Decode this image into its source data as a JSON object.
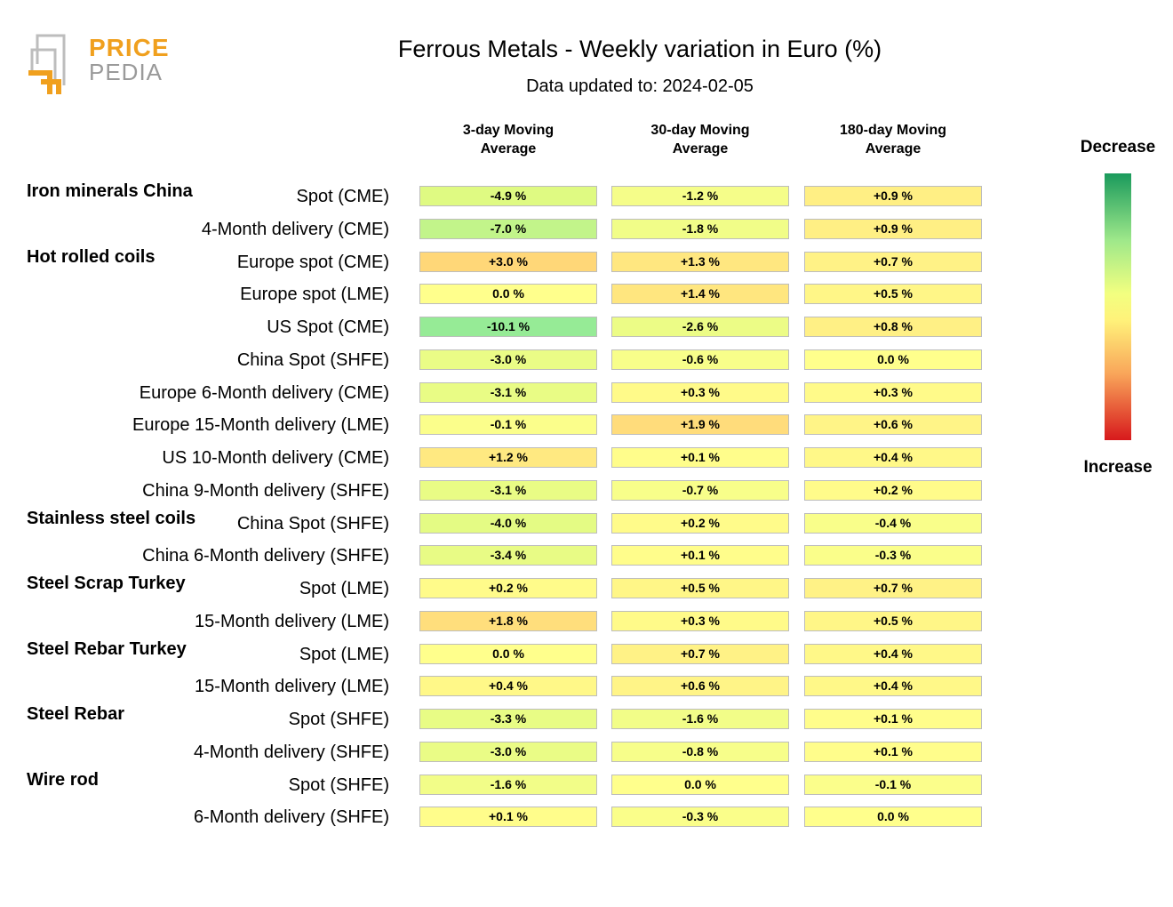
{
  "logo": {
    "line1": "PRICE",
    "line2": "PEDIA"
  },
  "chart_data": {
    "type": "heatmap",
    "title": "Ferrous Metals - Weekly variation in Euro (%)",
    "subtitle": "Data updated to: 2024-02-05",
    "columns": [
      "3-day Moving Average",
      "30-day Moving Average",
      "180-day Moving Average"
    ],
    "column_lines": [
      [
        "3-day Moving",
        "Average"
      ],
      [
        "30-day Moving",
        "Average"
      ],
      [
        "180-day Moving",
        "Average"
      ]
    ],
    "unit": "%",
    "legend": {
      "top": "Decrease",
      "bottom": "Increase"
    },
    "groups": [
      {
        "name": "Iron minerals China",
        "rows": [
          {
            "label": "Spot (CME)",
            "values": [
              -4.9,
              -1.2,
              0.9
            ],
            "display": [
              "-4.9 %",
              "-1.2 %",
              "+0.9 %"
            ]
          },
          {
            "label": "4-Month delivery (CME)",
            "values": [
              -7.0,
              -1.8,
              0.9
            ],
            "display": [
              "-7.0 %",
              "-1.8 %",
              "+0.9 %"
            ]
          }
        ]
      },
      {
        "name": "Hot rolled coils",
        "rows": [
          {
            "label": "Europe spot (CME)",
            "values": [
              3.0,
              1.3,
              0.7
            ],
            "display": [
              "+3.0 %",
              "+1.3 %",
              "+0.7 %"
            ]
          },
          {
            "label": "Europe spot (LME)",
            "values": [
              0.0,
              1.4,
              0.5
            ],
            "display": [
              "0.0 %",
              "+1.4 %",
              "+0.5 %"
            ]
          },
          {
            "label": "US Spot (CME)",
            "values": [
              -10.1,
              -2.6,
              0.8
            ],
            "display": [
              "-10.1 %",
              "-2.6 %",
              "+0.8 %"
            ]
          },
          {
            "label": "China Spot (SHFE)",
            "values": [
              -3.0,
              -0.6,
              0.0
            ],
            "display": [
              "-3.0 %",
              "-0.6 %",
              "0.0 %"
            ]
          },
          {
            "label": "Europe 6-Month delivery (CME)",
            "values": [
              -3.1,
              0.3,
              0.3
            ],
            "display": [
              "-3.1 %",
              "+0.3 %",
              "+0.3 %"
            ]
          },
          {
            "label": "Europe 15-Month delivery (LME)",
            "values": [
              -0.1,
              1.9,
              0.6
            ],
            "display": [
              "-0.1 %",
              "+1.9 %",
              "+0.6 %"
            ]
          },
          {
            "label": "US 10-Month delivery (CME)",
            "values": [
              1.2,
              0.1,
              0.4
            ],
            "display": [
              "+1.2 %",
              "+0.1 %",
              "+0.4 %"
            ]
          },
          {
            "label": "China 9-Month delivery (SHFE)",
            "values": [
              -3.1,
              -0.7,
              0.2
            ],
            "display": [
              "-3.1 %",
              "-0.7 %",
              "+0.2 %"
            ]
          }
        ]
      },
      {
        "name": "Stainless steel coils",
        "rows": [
          {
            "label": "China Spot (SHFE)",
            "values": [
              -4.0,
              0.2,
              -0.4
            ],
            "display": [
              "-4.0 %",
              "+0.2 %",
              "-0.4 %"
            ]
          },
          {
            "label": "China 6-Month delivery (SHFE)",
            "values": [
              -3.4,
              0.1,
              -0.3
            ],
            "display": [
              "-3.4 %",
              "+0.1 %",
              "-0.3 %"
            ]
          }
        ]
      },
      {
        "name": "Steel Scrap Turkey",
        "rows": [
          {
            "label": "Spot (LME)",
            "values": [
              0.2,
              0.5,
              0.7
            ],
            "display": [
              "+0.2 %",
              "+0.5 %",
              "+0.7 %"
            ]
          },
          {
            "label": "15-Month delivery (LME)",
            "values": [
              1.8,
              0.3,
              0.5
            ],
            "display": [
              "+1.8 %",
              "+0.3 %",
              "+0.5 %"
            ]
          }
        ]
      },
      {
        "name": "Steel Rebar Turkey",
        "rows": [
          {
            "label": "Spot (LME)",
            "values": [
              0.0,
              0.7,
              0.4
            ],
            "display": [
              "0.0 %",
              "+0.7 %",
              "+0.4 %"
            ]
          },
          {
            "label": "15-Month delivery (LME)",
            "values": [
              0.4,
              0.6,
              0.4
            ],
            "display": [
              "+0.4 %",
              "+0.6 %",
              "+0.4 %"
            ]
          }
        ]
      },
      {
        "name": "Steel Rebar",
        "rows": [
          {
            "label": "Spot (SHFE)",
            "values": [
              -3.3,
              -1.6,
              0.1
            ],
            "display": [
              "-3.3 %",
              "-1.6 %",
              "+0.1 %"
            ]
          },
          {
            "label": "4-Month delivery (SHFE)",
            "values": [
              -3.0,
              -0.8,
              0.1
            ],
            "display": [
              "-3.0 %",
              "-0.8 %",
              "+0.1 %"
            ]
          }
        ]
      },
      {
        "name": "Wire rod",
        "rows": [
          {
            "label": "Spot (SHFE)",
            "values": [
              -1.6,
              0.0,
              -0.1
            ],
            "display": [
              "-1.6 %",
              "0.0 %",
              "-0.1 %"
            ]
          },
          {
            "label": "6-Month delivery (SHFE)",
            "values": [
              0.1,
              -0.3,
              0.0
            ],
            "display": [
              "+0.1 %",
              "-0.3 %",
              "0.0 %"
            ]
          }
        ]
      }
    ]
  }
}
